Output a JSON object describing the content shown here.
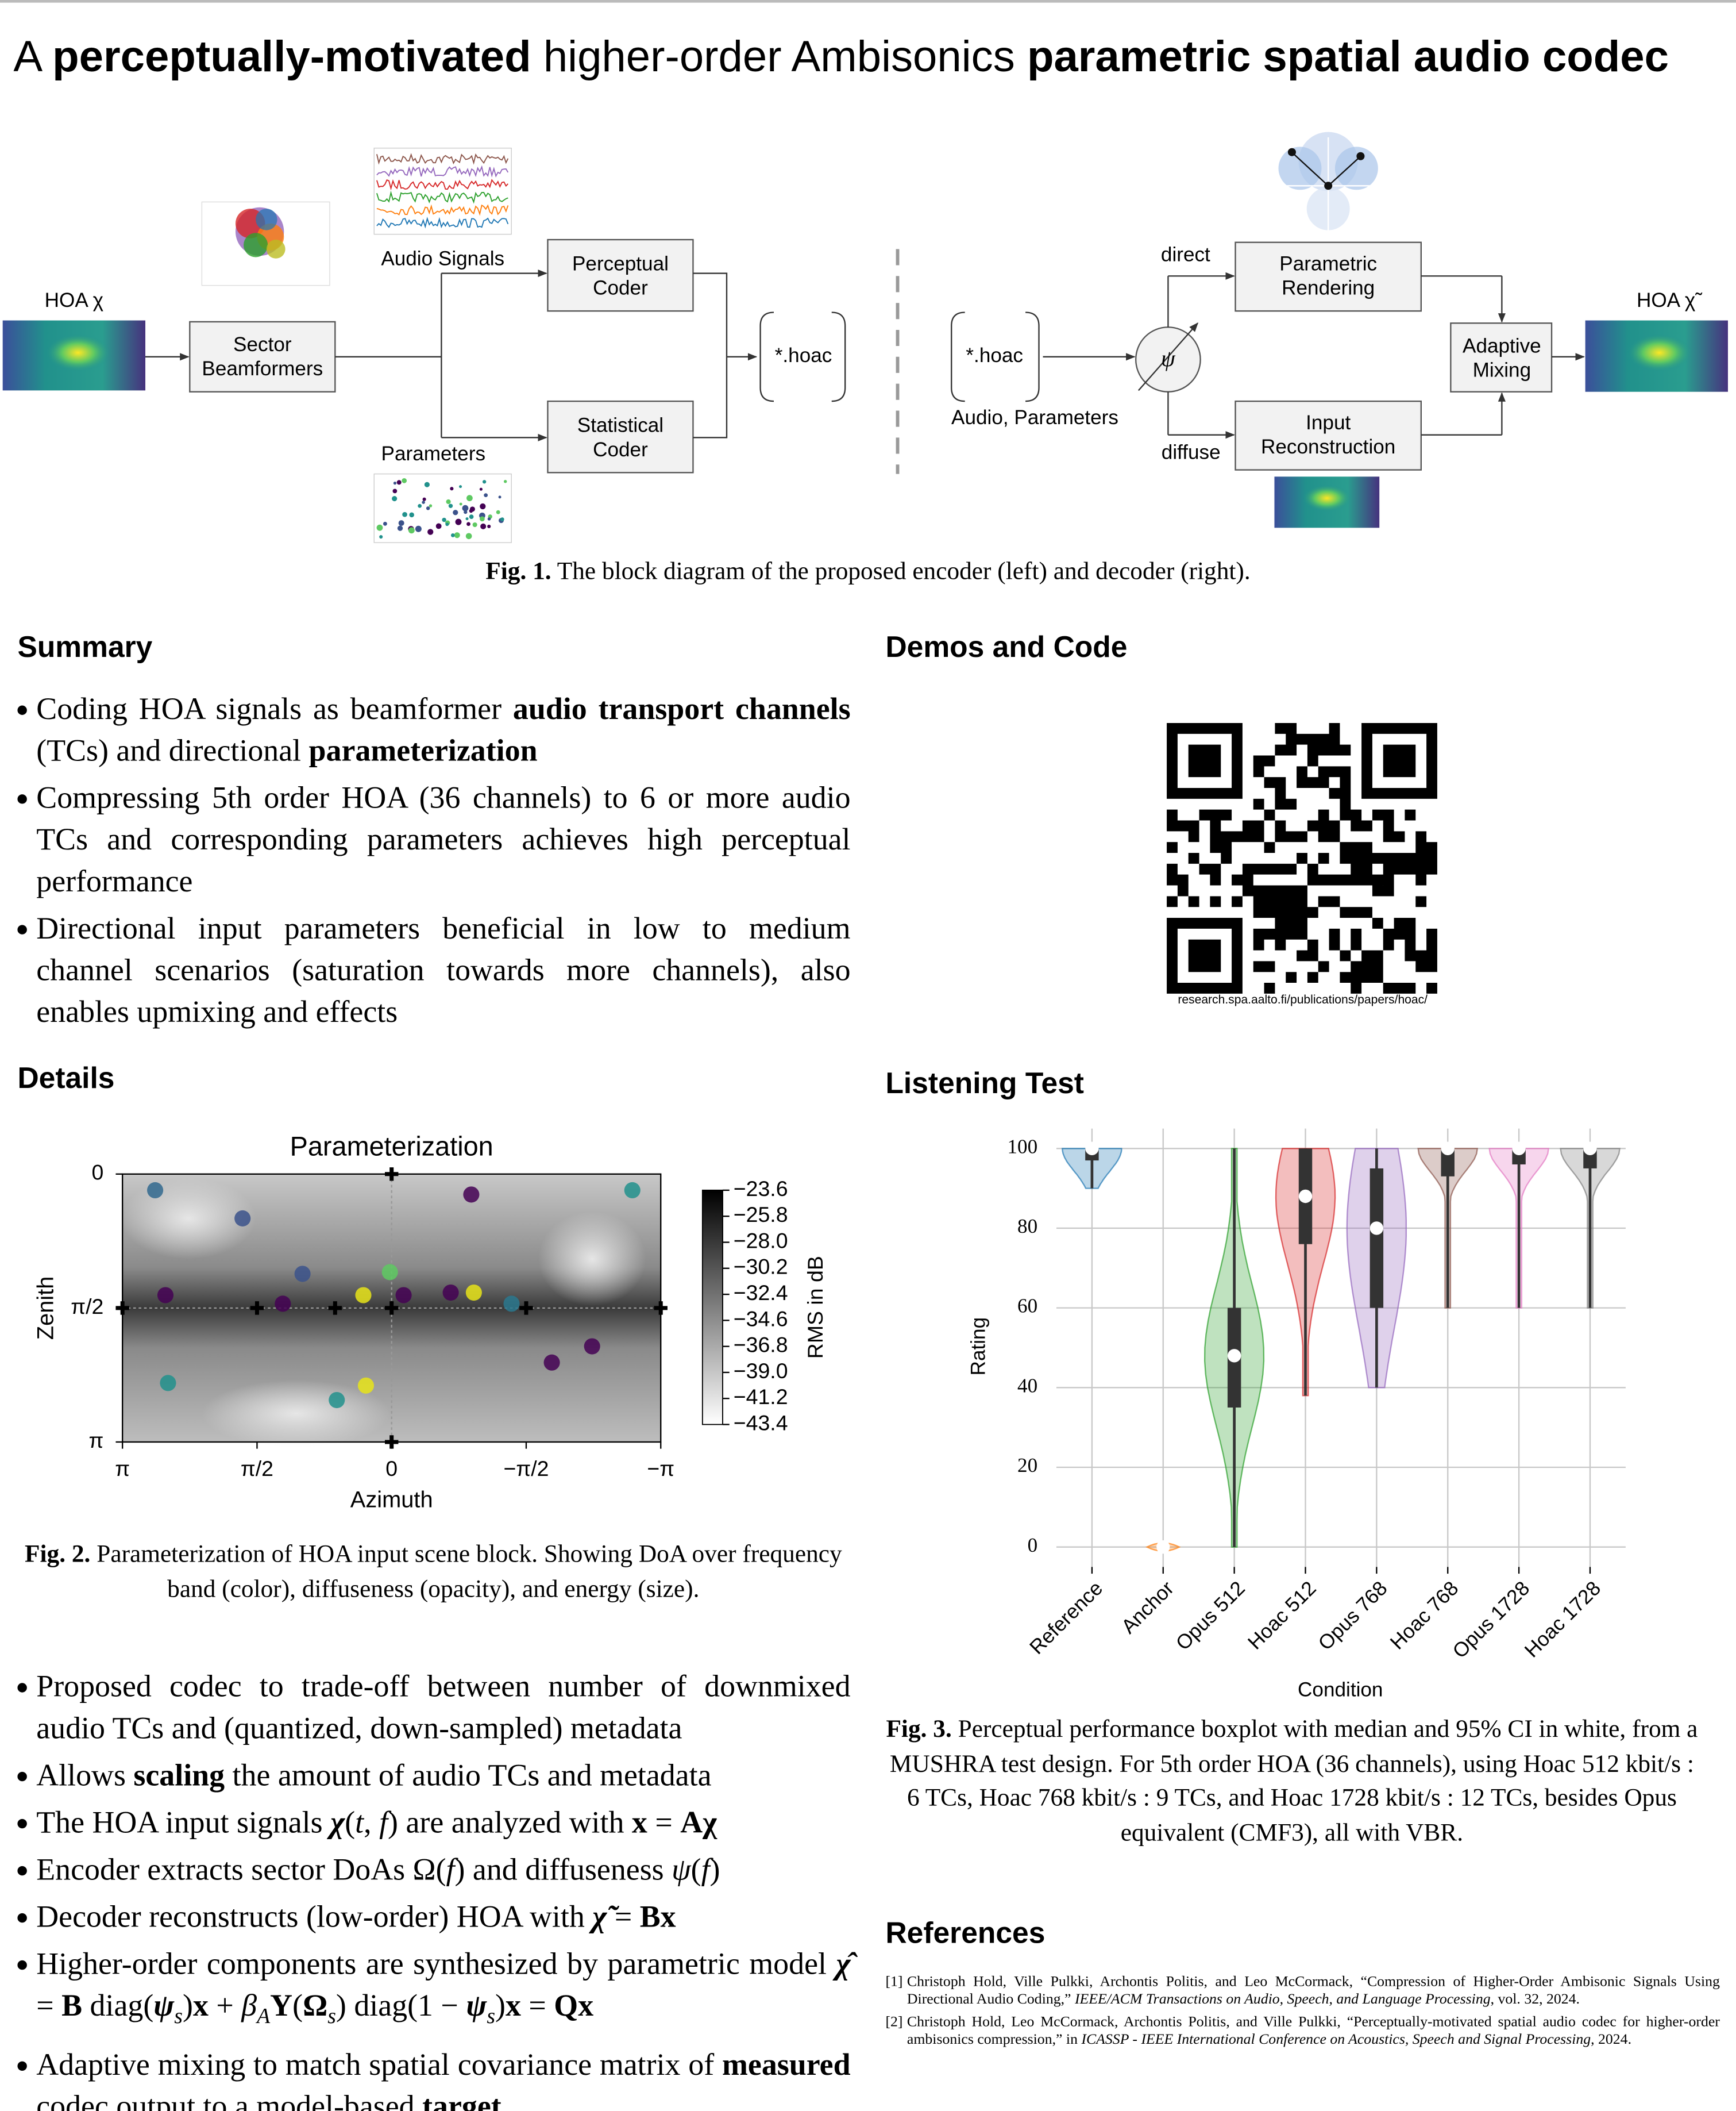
{
  "title": [
    "A ",
    {
      "text": "perceptually-motivated",
      "bold": true
    },
    " higher-order Ambisonics ",
    {
      "text": "parametric spatial audio codec",
      "bold": true
    }
  ],
  "figure1": {
    "hoa_in": "HOA χ",
    "beamformers": [
      "Sector",
      "Beamformers"
    ],
    "audio_signals": "Audio Signals",
    "parameters": "Parameters",
    "perceptual_coder": [
      "Perceptual",
      "Coder"
    ],
    "statistical_coder": [
      "Statistical",
      "Coder"
    ],
    "file_enc": "*.hoac",
    "file_dec": "*.hoac",
    "audio_parameters": "Audio, Parameters",
    "psi": "ψ",
    "direct": "direct",
    "diffuse": "diffuse",
    "parametric_rendering": [
      "Parametric",
      "Rendering"
    ],
    "input_reconstruction": [
      "Input",
      "Reconstruction"
    ],
    "adaptive_mixing": [
      "Adaptive",
      "Mixing"
    ],
    "hoa_out": "HOA χ̃",
    "caption": [
      {
        "text": "Fig. 1.",
        "bold": true
      },
      " The block diagram of the proposed encoder (left) and decoder (right)."
    ]
  },
  "summary": {
    "heading": "Summary",
    "bullets": [
      [
        "Coding HOA signals as beamformer ",
        {
          "text": "audio transport channels",
          "bold": true
        },
        " (TCs) and directional ",
        {
          "text": "parameterization",
          "bold": true
        }
      ],
      [
        "Compressing 5th order HOA (36 channels) to 6 or more audio TCs and corresponding parameters achieves high perceptual performance"
      ],
      [
        "Directional input parameters beneficial in low to medium channel scenarios (saturation towards more channels), also enables upmixing and effects"
      ]
    ]
  },
  "demos": {
    "heading": "Demos and Code",
    "url": "research.spa.aalto.fi/publications/papers/hoac/"
  },
  "details": {
    "heading": "Details",
    "bullets": [
      [
        "Proposed codec to trade-off between number of downmixed audio TCs and (quantized, down-sampled) metadata"
      ],
      [
        "Allows ",
        {
          "text": "scaling",
          "bold": true
        },
        " the amount of audio TCs and metadata"
      ],
      [
        "The HOA input signals ",
        {
          "text": "χ",
          "bold": true,
          "italic": true
        },
        "(",
        {
          "text": "t",
          "italic": true
        },
        ", ",
        {
          "text": "f",
          "italic": true
        },
        ") are analyzed with ",
        {
          "text": "x",
          "bold": true
        },
        " = ",
        {
          "text": "Aχ",
          "bold": true
        }
      ],
      [
        "Encoder extracts sector DoAs Ω(",
        {
          "text": "f",
          "italic": true
        },
        ") and diffuseness ",
        {
          "text": "ψ",
          "italic": true
        },
        "(",
        {
          "text": "f",
          "italic": true
        },
        ")"
      ],
      [
        "Decoder reconstructs (low-order) HOA with ",
        {
          "text": "χ̃",
          "bold": true,
          "italic": true
        },
        " = ",
        {
          "text": "Bx",
          "bold": true
        }
      ],
      [
        "Higher-order components are synthesized by parametric model ",
        {
          "text": "χ̂",
          "bold": true,
          "italic": true
        },
        " = ",
        {
          "text": "B",
          "bold": true
        },
        " diag(",
        {
          "text": "ψ",
          "bold": true,
          "italic": true
        },
        {
          "text": "s",
          "italic": true,
          "sub": true
        },
        ")",
        {
          "text": "x",
          "bold": true
        },
        " + ",
        {
          "text": "β",
          "italic": true
        },
        {
          "text": "A",
          "italic": true,
          "sub": true
        },
        {
          "text": "Y",
          "bold": true
        },
        "(",
        {
          "text": "Ω",
          "bold": true
        },
        {
          "text": "s",
          "italic": true,
          "sub": true
        },
        ") diag(1 − ",
        {
          "text": "ψ",
          "bold": true,
          "italic": true
        },
        {
          "text": "s",
          "italic": true,
          "sub": true
        },
        ")",
        {
          "text": "x",
          "bold": true
        },
        " = ",
        {
          "text": "Qx",
          "bold": true
        }
      ],
      [
        "Adaptive mixing to match spatial covariance matrix of ",
        {
          "text": "measured",
          "bold": true
        },
        " codec output to a model-based ",
        {
          "text": "target",
          "bold": true
        }
      ]
    ]
  },
  "listening": {
    "heading": "Listening Test"
  },
  "references": {
    "heading": "References",
    "items": [
      {
        "label": "[1]",
        "text": [
          "Christoph Hold, Ville Pulkki, Archontis Politis, and Leo McCormack, “Compression of Higher-Order Ambisonic Signals Using Directional Audio Coding,” ",
          {
            "text": "IEEE/ACM Transactions on Audio, Speech, and Language Processing",
            "italic": true
          },
          ", vol. 32, 2024."
        ]
      },
      {
        "label": "[2]",
        "text": [
          "Christoph Hold, Leo McCormack, Archontis Politis, and Ville Pulkki, “Perceptually-motivated spatial audio codec for higher-order ambisonics compression,” in ",
          {
            "text": "ICASSP - IEEE International Conference on Acoustics, Speech and Signal Processing",
            "italic": true
          },
          ", 2024."
        ]
      }
    ]
  },
  "chart_data": [
    {
      "type": "scatter",
      "title": "Parameterization",
      "x_label": "Azimuth",
      "y_label": "Zenith",
      "xlim": [
        3.1416,
        -3.1416
      ],
      "xticks": [
        {
          "value": 3.1416,
          "label": "π"
        },
        {
          "value": 1.5708,
          "label": "π/2"
        },
        0,
        {
          "value": -1.5708,
          "label": "−π/2"
        },
        {
          "value": -3.1416,
          "label": "−π"
        }
      ],
      "ylim": [
        3.1416,
        0
      ],
      "yticks": [
        0,
        {
          "value": 1.5708,
          "label": "π/2"
        },
        {
          "value": 3.1416,
          "label": "π"
        }
      ],
      "x": [
        0.33,
        0.3,
        -0.96,
        1.27,
        -0.14,
        -0.69,
        -1.4,
        2.64,
        2.76,
        -0.93,
        -2.81,
        -1.87,
        2.61,
        0.02,
        1.74,
        0.64,
        -2.34,
        1.04
      ],
      "y": [
        1.42,
        2.48,
        1.39,
        1.52,
        1.42,
        1.39,
        1.52,
        1.42,
        0.19,
        0.24,
        0.19,
        2.21,
        2.45,
        1.15,
        0.52,
        2.65,
        2.02,
        1.17
      ],
      "colors": [
        "#e8e419",
        "#e8e419",
        "#e8e419",
        "#440154",
        "#440154",
        "#440154",
        "#2a788e",
        "#440154",
        "#31688e",
        "#440154",
        "#21918c",
        "#440154",
        "#21918c",
        "#5ec962",
        "#3b528b",
        "#21918c",
        "#440154",
        "#3b528b"
      ],
      "colorbar": {
        "label": "RMS in dB",
        "lim": [
          -43.4,
          -23.6
        ],
        "ticks": [
          {
            "value": -23.6,
            "label": "−23.6"
          },
          {
            "value": -25.8,
            "label": "−25.8"
          },
          {
            "value": -28.0,
            "label": "−28.0"
          },
          {
            "value": -30.2,
            "label": "−30.2"
          },
          {
            "value": -32.4,
            "label": "−32.4"
          },
          {
            "value": -34.6,
            "label": "−34.6"
          },
          {
            "value": -36.8,
            "label": "−36.8"
          },
          {
            "value": -39.0,
            "label": "−39.0"
          },
          {
            "value": -41.2,
            "label": "−41.2"
          },
          {
            "value": -43.4,
            "label": "−43.4"
          }
        ]
      },
      "caption": [
        {
          "text": "Fig. 2.",
          "bold": true
        },
        " Parameterization of HOA input scene block. Showing DoA over frequency band (color), diffuseness (opacity), and energy (size)."
      ]
    },
    {
      "type": "violin",
      "x_label": "Condition",
      "y_label": "Rating",
      "categories": [
        "Reference",
        "Anchor",
        "Opus 512",
        "Hoac 512",
        "Opus 768",
        "Hoac 768",
        "Opus 1728",
        "Hoac 1728"
      ],
      "colors": [
        "#1f77b4",
        "#ff7f0e",
        "#2ca02c",
        "#d62728",
        "#9467bd",
        "#8c564b",
        "#e377c2",
        "#7f7f7f"
      ],
      "median": [
        100,
        0,
        48,
        88,
        80,
        100,
        100,
        100
      ],
      "q1": [
        97,
        0,
        35,
        76,
        60,
        93,
        96,
        95
      ],
      "q3": [
        100,
        0,
        60,
        100,
        95,
        100,
        100,
        100
      ],
      "min": [
        90,
        0,
        0,
        38,
        40,
        60,
        60,
        60
      ],
      "max": [
        100,
        0,
        100,
        100,
        100,
        100,
        100,
        100
      ],
      "ylim": [
        -5,
        105
      ],
      "yticks": [
        0,
        20,
        40,
        60,
        80,
        100
      ],
      "grid": true,
      "caption": [
        {
          "text": "Fig. 3.",
          "bold": true
        },
        " Perceptual performance boxplot with median and 95% CI in white, from a MUSHRA test design. For 5th order HOA (36 channels), using Hoac 512 kbit/s : 6 TCs, Hoac 768 kbit/s : 9 TCs, and Hoac 1728 kbit/s : 12 TCs, besides Opus equivalent (CMF3), all with VBR."
      ]
    }
  ]
}
